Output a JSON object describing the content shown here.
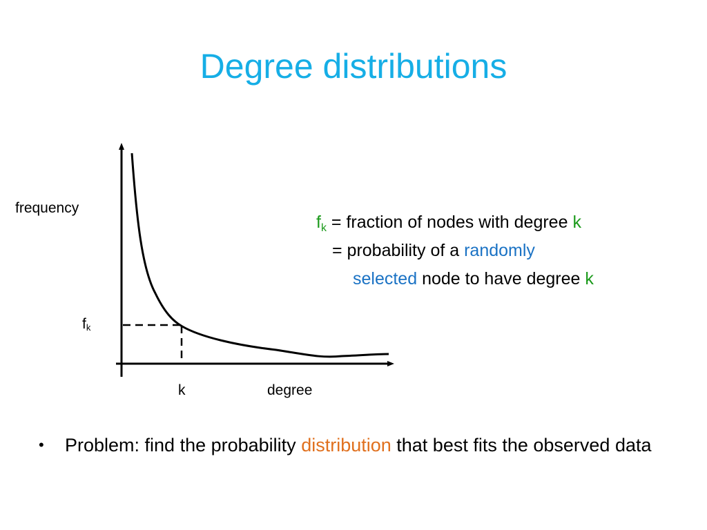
{
  "slide": {
    "title": "Degree distributions"
  },
  "diagram": {
    "y_axis_label": "frequency",
    "x_axis_label": "degree",
    "fk_base": "f",
    "fk_sub": "k",
    "k_tick": "k",
    "curve_shape": "decreasing heavy-tailed curve",
    "marker_line_style": "dashed"
  },
  "definition": {
    "line1": {
      "f": "f",
      "sub": "k",
      "text": " = fraction of nodes with degree ",
      "k": "k"
    },
    "line2": {
      "text": "= probability of a ",
      "highlight": "randomly"
    },
    "line3": {
      "highlight": "selected",
      "text": " node to have degree ",
      "k": "k"
    }
  },
  "bullets": [
    {
      "before": "Problem: find the probability ",
      "highlight": "distribution",
      "after": " that best fits the observed data"
    }
  ],
  "colors": {
    "title": "#16aee6",
    "green": "#1c9a1c",
    "blue": "#1a72c4",
    "orange": "#e0701e"
  }
}
